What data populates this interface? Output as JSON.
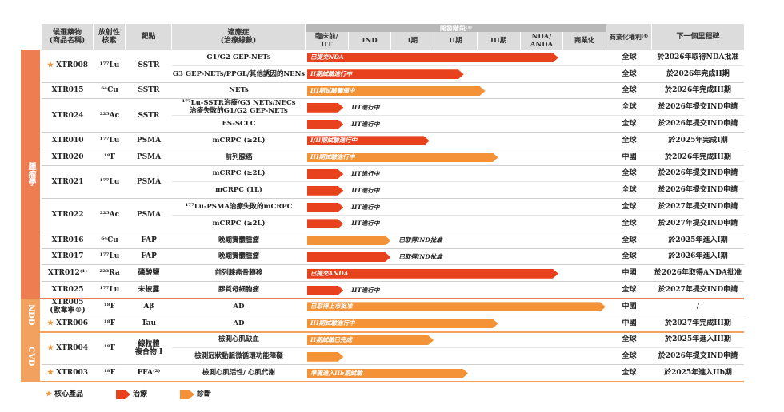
{
  "header": {
    "candidate": "候選藥物\n(商品名稱)",
    "nuclide": "放射性\n核素",
    "target": "靶點",
    "indication": "適應症\n(治療線數)",
    "stage_title": "開發階段⁽¹⁾",
    "stages": [
      "臨床前/\nIIT",
      "IND",
      "I期",
      "II期",
      "III期",
      "NDA/\nANDA",
      "商業化"
    ],
    "rights": "商業化權利⁽⁴⁾",
    "milestone": "下一個里程碑"
  },
  "groups": [
    {
      "name": "腫瘤學",
      "color": "#ef7d52",
      "drugs": [
        {
          "name": "XTR008",
          "core": true,
          "nuclide": "¹⁷⁷Lu",
          "target": "SSTR",
          "indications": [
            {
              "name": "G1/G2 GEP-NETs",
              "type": "therapy",
              "bar_label": "已提交NDA",
              "progress": 5.9,
              "rights": "全球",
              "milestone": "於2026年取得NDA批准"
            },
            {
              "name": "G3 GEP-NETs/PPGL/其他誘因的NENs",
              "type": "therapy",
              "bar_label": "II期試驗進行中",
              "progress": 3.7,
              "rights": "全球",
              "milestone": "於2026年完成II期"
            }
          ]
        },
        {
          "name": "XTR015",
          "core": false,
          "nuclide": "⁶⁴Cu",
          "target": "SSTR",
          "indications": [
            {
              "name": "NETs",
              "type": "diagnosis",
              "bar_label": "III期試驗籌備中",
              "progress": 4.2,
              "rights": "全球",
              "milestone": "於2026年完成III期"
            }
          ]
        },
        {
          "name": "XTR024",
          "core": false,
          "nuclide": "²²⁵Ac",
          "target": "SSTR",
          "indications": [
            {
              "name": "¹⁷⁷Lu-SSTR治療/G3 NETs/NECs\n治療失敗的G1/G2 GEP-NETs",
              "type": "therapy",
              "bar_label": "IIT進行中",
              "progress": 0.9,
              "rights": "全球",
              "milestone": "於2026年提交IND申請"
            },
            {
              "name": "ES-SCLC",
              "type": "therapy",
              "bar_label": "IIT進行中",
              "progress": 0.9,
              "rights": "全球",
              "milestone": "於2026年提交IND申請"
            }
          ]
        },
        {
          "name": "XTR010",
          "core": false,
          "nuclide": "¹⁷⁷Lu",
          "target": "PSMA",
          "indications": [
            {
              "name": "mCRPC (≥2L)",
              "type": "therapy",
              "bar_label": "I/II期試驗進行中",
              "progress": 2.9,
              "rights": "全球",
              "milestone": "於2025年完成I期"
            }
          ]
        },
        {
          "name": "XTR020",
          "core": false,
          "nuclide": "¹⁸F",
          "target": "PSMA",
          "indications": [
            {
              "name": "前列腺癌",
              "type": "diagnosis",
              "bar_label": "III期試驗進行中",
              "progress": 4.5,
              "rights": "中國",
              "milestone": "於2026年完成III期"
            }
          ]
        },
        {
          "name": "XTR021",
          "core": false,
          "nuclide": "¹⁷⁷Lu",
          "target": "PSMA",
          "indications": [
            {
              "name": "mCRPC (≥2L)",
              "type": "therapy",
              "bar_label": "IIT進行中",
              "progress": 0.9,
              "rights": "全球",
              "milestone": "於2026年提交IND申請"
            },
            {
              "name": "mCRPC (1L)",
              "type": "therapy",
              "bar_label": "IIT進行中",
              "progress": 0.9,
              "rights": "全球",
              "milestone": "於2026年提交IND申請"
            }
          ]
        },
        {
          "name": "XTR022",
          "core": false,
          "nuclide": "²²⁵Ac",
          "target": "PSMA",
          "indications": [
            {
              "name": "¹⁷⁷Lu-PSMA治療失敗的mCRPC",
              "type": "therapy",
              "bar_label": "IIT進行中",
              "progress": 0.9,
              "rights": "全球",
              "milestone": "於2027年提交IND申請"
            },
            {
              "name": "mCRPC (≥2L)",
              "type": "therapy",
              "bar_label": "IIT進行中",
              "progress": 0.9,
              "rights": "全球",
              "milestone": "於2027年提交IND申請"
            }
          ]
        },
        {
          "name": "XTR016",
          "core": false,
          "nuclide": "⁶⁴Cu",
          "target": "FAP",
          "indications": [
            {
              "name": "晚期實體腫瘤",
              "type": "diagnosis",
              "bar_label": "已取得IND批准",
              "progress": 2.0,
              "rights": "全球",
              "milestone": "於2025年進入I期"
            }
          ]
        },
        {
          "name": "XTR017",
          "core": false,
          "nuclide": "¹⁷⁷Lu",
          "target": "FAP",
          "indications": [
            {
              "name": "晚期實體腫瘤",
              "type": "therapy",
              "bar_label": "已取得IND批准",
              "progress": 2.0,
              "rights": "全球",
              "milestone": "於2026年進入I期"
            }
          ]
        },
        {
          "name": "XTR012⁽¹⁾",
          "core": false,
          "nuclide": "²²³Ra",
          "target": "磷酸鹽",
          "indications": [
            {
              "name": "前列腺癌骨轉移",
              "type": "therapy",
              "bar_label": "已提交ANDA",
              "progress": 5.9,
              "rights": "中國",
              "milestone": "於2026年取得ANDA批准"
            }
          ]
        },
        {
          "name": "XTR025",
          "core": false,
          "nuclide": "¹⁷⁷Lu",
          "target": "未披露",
          "indications": [
            {
              "name": "膠質母細胞瘤",
              "type": "therapy",
              "bar_label": "IIT進行中",
              "progress": 0.9,
              "rights": "全球",
              "milestone": "於2027年提交IND申請"
            }
          ]
        }
      ]
    },
    {
      "name": "NDD",
      "color": "#f3a15e",
      "drugs": [
        {
          "name": "XTR005\n(歐韋寧®)",
          "core": false,
          "nuclide": "¹⁸F",
          "target": "Aβ",
          "indications": [
            {
              "name": "AD",
              "type": "diagnosis",
              "bar_label": "已取得上市批准",
              "progress": 7.0,
              "rights": "中國",
              "milestone": "/"
            }
          ]
        },
        {
          "name": "XTR006",
          "core": true,
          "nuclide": "¹⁸F",
          "target": "Tau",
          "indications": [
            {
              "name": "AD",
              "type": "diagnosis",
              "bar_label": "III期試驗進行中",
              "progress": 4.5,
              "rights": "中國",
              "milestone": "於2027年完成III期"
            }
          ]
        }
      ]
    },
    {
      "name": "CVD",
      "color": "#f3a15e",
      "drugs": [
        {
          "name": "XTR004",
          "core": true,
          "nuclide": "¹⁸F",
          "target": "線粒體\n複合物 I",
          "indications": [
            {
              "name": "檢測心肌缺血",
              "type": "diagnosis",
              "bar_label": "II期試驗已完成",
              "progress": 3.0,
              "rights": "全球",
              "milestone": "於2025年進入III期"
            },
            {
              "name": "檢測冠狀動脈微循環功能障礙",
              "type": "diagnosis",
              "bar_label": "",
              "progress": 0.9,
              "rights": "全球",
              "milestone": "於2026年提交IND申請"
            }
          ]
        },
        {
          "name": "XTR003",
          "core": true,
          "nuclide": "¹⁸F",
          "target": "FFA⁽²⁾",
          "indications": [
            {
              "name": "檢測心肌活性/ 心肌代謝",
              "type": "diagnosis",
              "bar_label": "準備進入IIb期試驗",
              "progress": 3.8,
              "rights": "全球",
              "milestone": "於2025年進入IIb期"
            }
          ]
        }
      ]
    }
  ],
  "colors": {
    "therapy": "#e8411d",
    "diagnosis": "#f39236",
    "core": "#f39236"
  },
  "legend": {
    "core": "核心產品",
    "therapy": "治療",
    "diagnosis": "診斷"
  }
}
